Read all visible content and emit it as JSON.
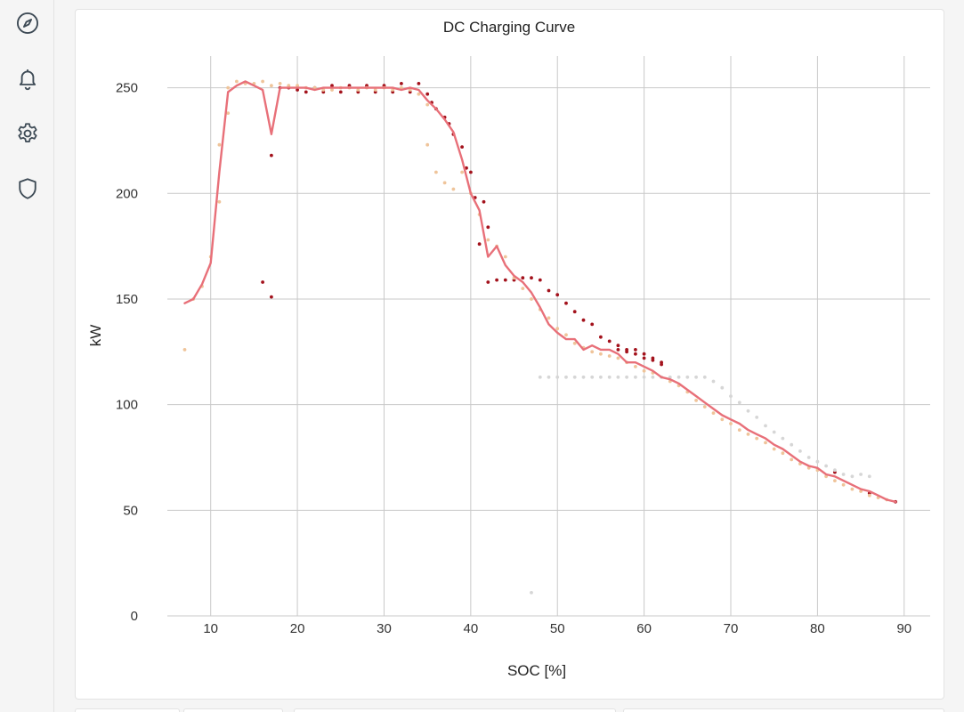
{
  "sidebar": {
    "items": [
      {
        "icon": "compass-icon"
      },
      {
        "icon": "bell-icon"
      },
      {
        "icon": "gear-icon"
      },
      {
        "icon": "shield-icon"
      }
    ],
    "icon_color": "#3d4a55"
  },
  "chart_data": {
    "type": "line",
    "title": "DC Charging Curve",
    "xlabel": "SOC [%]",
    "ylabel": "kW",
    "xlim": [
      5,
      93
    ],
    "ylim": [
      0,
      265
    ],
    "xticks": [
      10,
      20,
      30,
      40,
      50,
      60,
      70,
      80,
      90
    ],
    "yticks": [
      0,
      50,
      100,
      150,
      200,
      250
    ],
    "grid": true,
    "series": [
      {
        "kind": "line",
        "color": "#e87079",
        "points": [
          [
            7,
            148
          ],
          [
            8,
            150
          ],
          [
            9,
            157
          ],
          [
            10,
            167
          ],
          [
            11,
            210
          ],
          [
            12,
            248
          ],
          [
            13,
            251
          ],
          [
            14,
            253
          ],
          [
            15,
            251
          ],
          [
            16,
            249
          ],
          [
            17,
            228
          ],
          [
            18,
            250
          ],
          [
            19,
            250
          ],
          [
            20,
            250
          ],
          [
            21,
            250
          ],
          [
            22,
            249
          ],
          [
            23,
            250
          ],
          [
            24,
            250
          ],
          [
            25,
            250
          ],
          [
            26,
            250
          ],
          [
            27,
            250
          ],
          [
            28,
            250
          ],
          [
            29,
            250
          ],
          [
            30,
            250
          ],
          [
            31,
            250
          ],
          [
            32,
            249
          ],
          [
            33,
            250
          ],
          [
            34,
            249
          ],
          [
            35,
            244
          ],
          [
            36,
            240
          ],
          [
            37,
            235
          ],
          [
            38,
            229
          ],
          [
            39,
            216
          ],
          [
            40,
            200
          ],
          [
            41,
            192
          ],
          [
            42,
            170
          ],
          [
            43,
            175
          ],
          [
            44,
            166
          ],
          [
            45,
            161
          ],
          [
            46,
            158
          ],
          [
            47,
            153
          ],
          [
            48,
            146
          ],
          [
            49,
            138
          ],
          [
            50,
            134
          ],
          [
            51,
            131
          ],
          [
            52,
            131
          ],
          [
            53,
            126
          ],
          [
            54,
            128
          ],
          [
            55,
            126
          ],
          [
            56,
            126
          ],
          [
            57,
            124
          ],
          [
            58,
            120
          ],
          [
            59,
            120
          ],
          [
            60,
            118
          ],
          [
            61,
            116
          ],
          [
            62,
            113
          ],
          [
            63,
            112
          ],
          [
            64,
            110
          ],
          [
            65,
            107
          ],
          [
            66,
            104
          ],
          [
            67,
            101
          ],
          [
            68,
            98
          ],
          [
            69,
            95
          ],
          [
            70,
            93
          ],
          [
            71,
            91
          ],
          [
            72,
            88
          ],
          [
            73,
            86
          ],
          [
            74,
            84
          ],
          [
            75,
            81
          ],
          [
            76,
            79
          ],
          [
            77,
            76
          ],
          [
            78,
            73
          ],
          [
            79,
            71
          ],
          [
            80,
            70
          ],
          [
            81,
            67
          ],
          [
            82,
            66
          ],
          [
            83,
            64
          ],
          [
            84,
            62
          ],
          [
            85,
            60
          ],
          [
            86,
            59
          ],
          [
            87,
            57
          ],
          [
            88,
            55
          ],
          [
            89,
            54
          ]
        ]
      },
      {
        "kind": "scatter",
        "color": "#a3121c",
        "points": [
          [
            16,
            158
          ],
          [
            17,
            151
          ],
          [
            17,
            218
          ],
          [
            18,
            250
          ],
          [
            19,
            250
          ],
          [
            20,
            249
          ],
          [
            21,
            248
          ],
          [
            22,
            250
          ],
          [
            23,
            248
          ],
          [
            24,
            251
          ],
          [
            25,
            248
          ],
          [
            26,
            251
          ],
          [
            27,
            248
          ],
          [
            28,
            251
          ],
          [
            29,
            248
          ],
          [
            30,
            251
          ],
          [
            31,
            248
          ],
          [
            32,
            252
          ],
          [
            33,
            248
          ],
          [
            34,
            252
          ],
          [
            35,
            247
          ],
          [
            35.5,
            243
          ],
          [
            36,
            240
          ],
          [
            37,
            236
          ],
          [
            37.5,
            233
          ],
          [
            38,
            228
          ],
          [
            39,
            222
          ],
          [
            39.5,
            212
          ],
          [
            40,
            210
          ],
          [
            40.5,
            198
          ],
          [
            41,
            176
          ],
          [
            41.5,
            196
          ],
          [
            42,
            184
          ],
          [
            42,
            158
          ],
          [
            43,
            159
          ],
          [
            44,
            159
          ],
          [
            45,
            159
          ],
          [
            46,
            160
          ],
          [
            47,
            160
          ],
          [
            48,
            159
          ],
          [
            49,
            154
          ],
          [
            50,
            152
          ],
          [
            51,
            148
          ],
          [
            52,
            144
          ],
          [
            53,
            140
          ],
          [
            54,
            138
          ],
          [
            55,
            132
          ],
          [
            56,
            130
          ],
          [
            57,
            128
          ],
          [
            58,
            126
          ],
          [
            59,
            124
          ],
          [
            60,
            124
          ],
          [
            61,
            122
          ],
          [
            62,
            120
          ],
          [
            57,
            126
          ],
          [
            58,
            125
          ],
          [
            59,
            126
          ],
          [
            60,
            122
          ],
          [
            61,
            121
          ],
          [
            62,
            119
          ],
          [
            82,
            68
          ],
          [
            86,
            58
          ],
          [
            89,
            54
          ]
        ]
      },
      {
        "kind": "scatter",
        "color": "#efc49a",
        "points": [
          [
            7,
            126
          ],
          [
            8,
            150
          ],
          [
            9,
            156
          ],
          [
            10,
            170
          ],
          [
            11,
            196
          ],
          [
            11,
            223
          ],
          [
            12,
            238
          ],
          [
            12,
            250
          ],
          [
            13,
            253
          ],
          [
            14,
            252
          ],
          [
            15,
            252
          ],
          [
            16,
            253
          ],
          [
            17,
            251
          ],
          [
            18,
            252
          ],
          [
            19,
            251
          ],
          [
            20,
            251
          ],
          [
            21,
            250
          ],
          [
            22,
            250
          ],
          [
            23,
            249
          ],
          [
            24,
            249
          ],
          [
            25,
            250
          ],
          [
            26,
            250
          ],
          [
            27,
            249
          ],
          [
            28,
            250
          ],
          [
            29,
            249
          ],
          [
            30,
            250
          ],
          [
            31,
            249
          ],
          [
            32,
            250
          ],
          [
            33,
            249
          ],
          [
            34,
            247
          ],
          [
            35,
            242
          ],
          [
            35,
            223
          ],
          [
            36,
            210
          ],
          [
            37,
            205
          ],
          [
            38,
            202
          ],
          [
            39,
            210
          ],
          [
            40,
            200
          ],
          [
            41,
            190
          ],
          [
            42,
            178
          ],
          [
            43,
            175
          ],
          [
            44,
            170
          ],
          [
            45,
            160
          ],
          [
            46,
            155
          ],
          [
            47,
            150
          ],
          [
            48,
            145
          ],
          [
            49,
            141
          ],
          [
            50,
            136
          ],
          [
            51,
            133
          ],
          [
            52,
            129
          ],
          [
            53,
            127
          ],
          [
            54,
            125
          ],
          [
            55,
            124
          ],
          [
            56,
            123
          ],
          [
            57,
            122
          ],
          [
            58,
            120
          ],
          [
            59,
            118
          ],
          [
            60,
            116
          ],
          [
            61,
            115
          ],
          [
            62,
            113
          ],
          [
            63,
            111
          ],
          [
            64,
            109
          ],
          [
            65,
            106
          ],
          [
            66,
            102
          ],
          [
            67,
            99
          ],
          [
            68,
            96
          ],
          [
            69,
            93
          ],
          [
            70,
            91
          ],
          [
            71,
            88
          ],
          [
            72,
            86
          ],
          [
            73,
            84
          ],
          [
            74,
            82
          ],
          [
            75,
            79
          ],
          [
            76,
            77
          ],
          [
            77,
            74
          ],
          [
            78,
            72
          ],
          [
            79,
            70
          ],
          [
            80,
            69
          ],
          [
            81,
            66
          ],
          [
            82,
            64
          ],
          [
            83,
            62
          ],
          [
            84,
            60
          ],
          [
            85,
            59
          ],
          [
            86,
            57
          ],
          [
            87,
            56
          ],
          [
            88,
            55
          ]
        ]
      },
      {
        "kind": "scatter",
        "color": "#d6d6d6",
        "points": [
          [
            47,
            11
          ],
          [
            48,
            113
          ],
          [
            49,
            113
          ],
          [
            50,
            113
          ],
          [
            51,
            113
          ],
          [
            52,
            113
          ],
          [
            53,
            113
          ],
          [
            54,
            113
          ],
          [
            55,
            113
          ],
          [
            56,
            113
          ],
          [
            57,
            113
          ],
          [
            58,
            113
          ],
          [
            59,
            113
          ],
          [
            60,
            113
          ],
          [
            61,
            113
          ],
          [
            62,
            113
          ],
          [
            63,
            113
          ],
          [
            64,
            113
          ],
          [
            65,
            113
          ],
          [
            66,
            113
          ],
          [
            67,
            113
          ],
          [
            68,
            111
          ],
          [
            69,
            108
          ],
          [
            70,
            104
          ],
          [
            71,
            101
          ],
          [
            72,
            97
          ],
          [
            73,
            94
          ],
          [
            74,
            90
          ],
          [
            75,
            87
          ],
          [
            76,
            84
          ],
          [
            77,
            81
          ],
          [
            78,
            78
          ],
          [
            79,
            75
          ],
          [
            80,
            73
          ],
          [
            81,
            71
          ],
          [
            82,
            69
          ],
          [
            83,
            67
          ],
          [
            84,
            66
          ],
          [
            85,
            67
          ],
          [
            86,
            66
          ]
        ]
      }
    ]
  }
}
